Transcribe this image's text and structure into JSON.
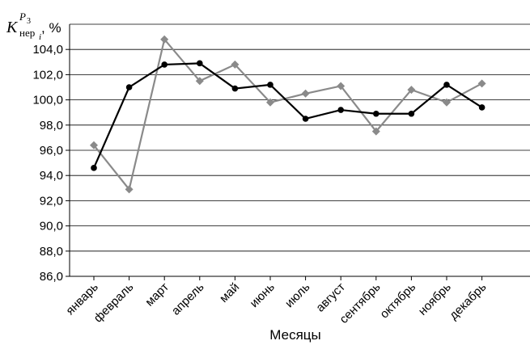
{
  "chart_data": {
    "type": "line",
    "title": "",
    "ylabel": {
      "symbol": "K",
      "subscript": "нер",
      "subscript_index": "i",
      "superscript": "P",
      "superscript_index": "3",
      "unit": ", %"
    },
    "xlabel": "Месяцы",
    "categories": [
      "январь",
      "февраль",
      "март",
      "апрель",
      "май",
      "июнь",
      "июль",
      "август",
      "сентябрь",
      "октябрь",
      "ноябрь",
      "декабрь"
    ],
    "yticks": [
      "86,0",
      "88,0",
      "90,0",
      "92,0",
      "94,0",
      "96,0",
      "98,0",
      "100,0",
      "102,0",
      "104,0"
    ],
    "ylim": [
      86,
      106
    ],
    "grid": "horizontal",
    "series": [
      {
        "color": "#000000",
        "marker": "circle",
        "values": [
          94.6,
          101.0,
          102.8,
          102.9,
          100.9,
          101.2,
          98.5,
          99.2,
          98.9,
          98.9,
          101.2,
          99.4
        ]
      },
      {
        "color": "#8a8a8a",
        "marker": "diamond",
        "values": [
          96.4,
          92.9,
          104.8,
          101.5,
          102.8,
          99.8,
          100.5,
          101.1,
          97.5,
          100.8,
          99.8,
          101.3
        ]
      }
    ]
  }
}
